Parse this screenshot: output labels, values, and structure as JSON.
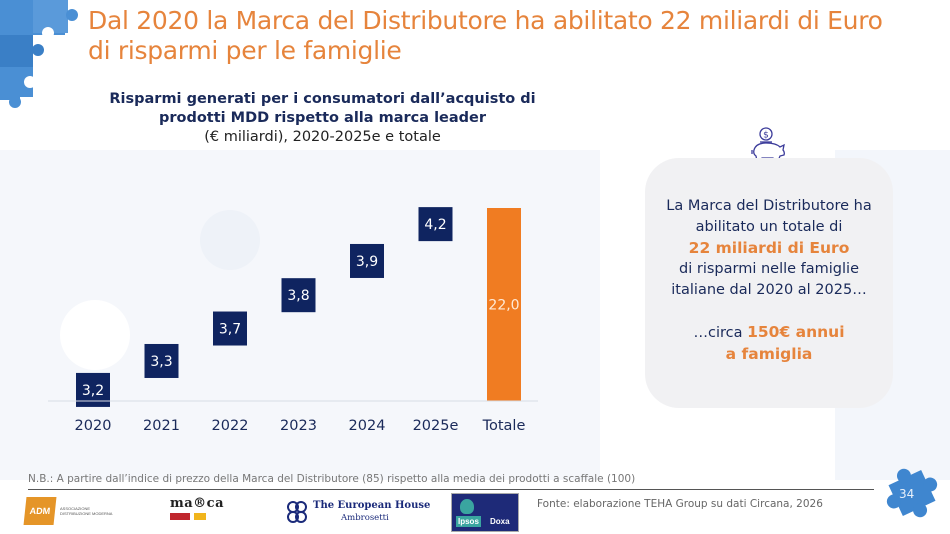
{
  "header": {
    "title_line1": "Dal 2020 la Marca del Distributore ha abilitato 22 miliardi di Euro",
    "title_line2": "di risparmi per le famiglie"
  },
  "chart_data": {
    "type": "bar",
    "title_line1": "Risparmi generati per i consumatori dall’acquisto di",
    "title_line2": "prodotti MDD rispetto alla marca leader",
    "subtitle": "(€ miliardi), 2020-2025e e totale",
    "categories": [
      "2020",
      "2021",
      "2022",
      "2023",
      "2024",
      "2025e",
      "Totale"
    ],
    "values": [
      3.2,
      3.3,
      3.7,
      3.8,
      3.9,
      4.2,
      22.0
    ],
    "value_labels": [
      "3,2",
      "3,3",
      "3,7",
      "3,8",
      "3,9",
      "4,2",
      "22,0"
    ],
    "chart_style": "waterfall",
    "series_colors": {
      "increment": "#0f2460",
      "total": "#f07c22"
    },
    "xlabel": "",
    "ylabel": "",
    "ylim": [
      0,
      22.0
    ],
    "grid": false,
    "legend": "none"
  },
  "callout": {
    "icon": "piggy-bank-icon",
    "line1": "La Marca del Distributore ha",
    "line2": "abilitato un totale di",
    "highlight1": "22 miliardi di Euro",
    "line3": "di risparmi nelle famiglie",
    "line4": "italiane dal 2020 al 2025…",
    "line5_prefix": "…circa ",
    "highlight2a": "150€ annui",
    "highlight2b": "a famiglia"
  },
  "footer": {
    "note": "N.B.: A partire dall’indice di prezzo della Marca del Distributore (85) rispetto alla media dei prodotti a scaffale (100)",
    "source": "Fonte: elaborazione TEHA Group su dati Circana, 2026",
    "page_number": "34",
    "logos": {
      "adm": "ADM",
      "adm_sub": "ASSOCIAZIONE DISTRIBUZIONE MODERNA",
      "marca": "ma®ca",
      "teha_line1": "The European House",
      "teha_line2": "Ambrosetti",
      "ipsos": "Ipsos",
      "doxa": "Doxa"
    }
  },
  "colors": {
    "accent_orange": "#e6843c",
    "navy": "#0f2460",
    "puzzle_blue": "#3f86cf"
  }
}
